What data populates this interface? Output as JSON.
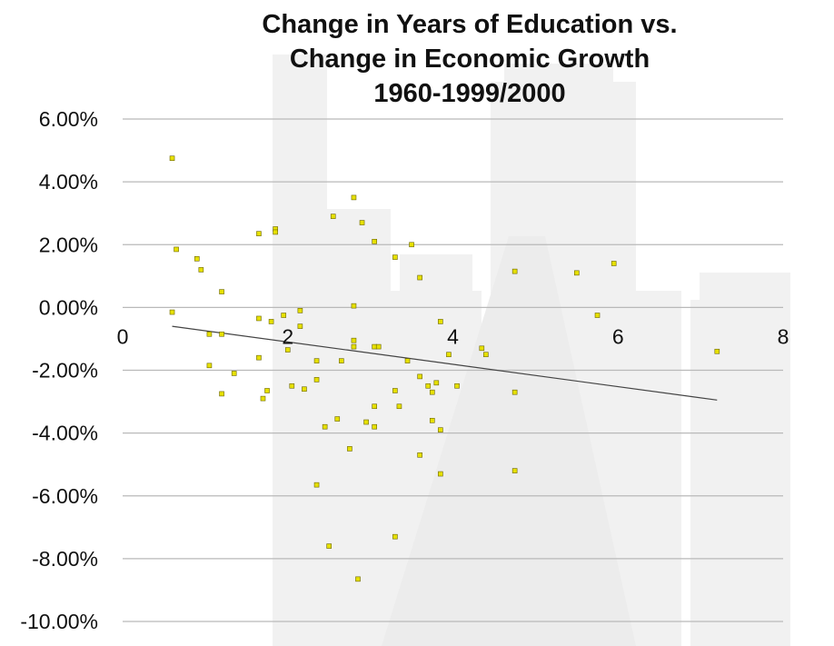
{
  "chart_data": {
    "type": "scatter",
    "title_lines": [
      "Change in Years of Education vs.",
      "Change in Economic Growth",
      "1960-1999/2000"
    ],
    "xlabel": "",
    "ylabel": "",
    "xlim": [
      0,
      8
    ],
    "ylim": [
      -10,
      6
    ],
    "x_ticks": [
      "0",
      "2",
      "4",
      "6",
      "8"
    ],
    "y_ticks": [
      "6.00%",
      "4.00%",
      "2.00%",
      "0.00%",
      "-2.00%",
      "-4.00%",
      "-6.00%",
      "-8.00%",
      "-10.00%"
    ],
    "y_tick_values": [
      6,
      4,
      2,
      0,
      -2,
      -4,
      -6,
      -8,
      -10
    ],
    "x_tick_values": [
      0,
      2,
      4,
      6,
      8
    ],
    "grid": "horizontal",
    "points": [
      [
        0.6,
        4.75
      ],
      [
        0.65,
        1.85
      ],
      [
        0.6,
        -0.15
      ],
      [
        0.9,
        1.55
      ],
      [
        0.95,
        1.2
      ],
      [
        1.2,
        0.5
      ],
      [
        1.2,
        -0.85
      ],
      [
        1.05,
        -0.85
      ],
      [
        1.05,
        -1.85
      ],
      [
        1.35,
        -2.1
      ],
      [
        1.2,
        -2.75
      ],
      [
        1.65,
        -1.6
      ],
      [
        1.65,
        2.35
      ],
      [
        1.85,
        2.5
      ],
      [
        1.85,
        2.4
      ],
      [
        1.65,
        -0.35
      ],
      [
        1.8,
        -0.45
      ],
      [
        1.95,
        -0.25
      ],
      [
        2.0,
        -1.35
      ],
      [
        2.15,
        -0.1
      ],
      [
        2.15,
        -0.6
      ],
      [
        2.2,
        -2.6
      ],
      [
        2.05,
        -2.5
      ],
      [
        1.75,
        -2.65
      ],
      [
        1.7,
        -2.9
      ],
      [
        2.35,
        -1.7
      ],
      [
        2.35,
        -2.3
      ],
      [
        2.45,
        -3.8
      ],
      [
        2.35,
        -5.65
      ],
      [
        2.5,
        -7.6
      ],
      [
        2.6,
        -3.55
      ],
      [
        2.65,
        -1.7
      ],
      [
        2.55,
        2.9
      ],
      [
        2.8,
        3.5
      ],
      [
        2.9,
        2.7
      ],
      [
        2.8,
        0.05
      ],
      [
        2.8,
        -1.05
      ],
      [
        2.8,
        -1.25
      ],
      [
        2.95,
        -3.65
      ],
      [
        3.05,
        -3.8
      ],
      [
        3.05,
        -3.15
      ],
      [
        3.05,
        -1.25
      ],
      [
        3.1,
        -1.25
      ],
      [
        2.75,
        -4.5
      ],
      [
        2.85,
        -8.65
      ],
      [
        3.05,
        2.1
      ],
      [
        3.3,
        1.6
      ],
      [
        3.5,
        2.0
      ],
      [
        3.45,
        -1.7
      ],
      [
        3.3,
        -2.65
      ],
      [
        3.35,
        -3.15
      ],
      [
        3.3,
        -7.3
      ],
      [
        3.6,
        0.95
      ],
      [
        3.6,
        -2.2
      ],
      [
        3.7,
        -2.5
      ],
      [
        3.75,
        -2.7
      ],
      [
        3.8,
        -2.4
      ],
      [
        3.85,
        -0.45
      ],
      [
        3.95,
        -1.5
      ],
      [
        4.05,
        -2.5
      ],
      [
        3.75,
        -3.6
      ],
      [
        3.85,
        -3.9
      ],
      [
        3.6,
        -4.7
      ],
      [
        3.85,
        -5.3
      ],
      [
        4.35,
        -1.3
      ],
      [
        4.4,
        -1.5
      ],
      [
        4.75,
        1.15
      ],
      [
        4.75,
        -2.7
      ],
      [
        4.75,
        -5.2
      ],
      [
        5.5,
        1.1
      ],
      [
        5.75,
        -0.25
      ],
      [
        5.95,
        1.4
      ],
      [
        7.2,
        -1.4
      ]
    ],
    "trendline": {
      "x": [
        0.6,
        7.2
      ],
      "y": [
        -0.6,
        -2.95
      ]
    },
    "colors": {
      "points": "#e6e000",
      "trendline": "#444444",
      "grid": "#b9b9b9"
    }
  }
}
